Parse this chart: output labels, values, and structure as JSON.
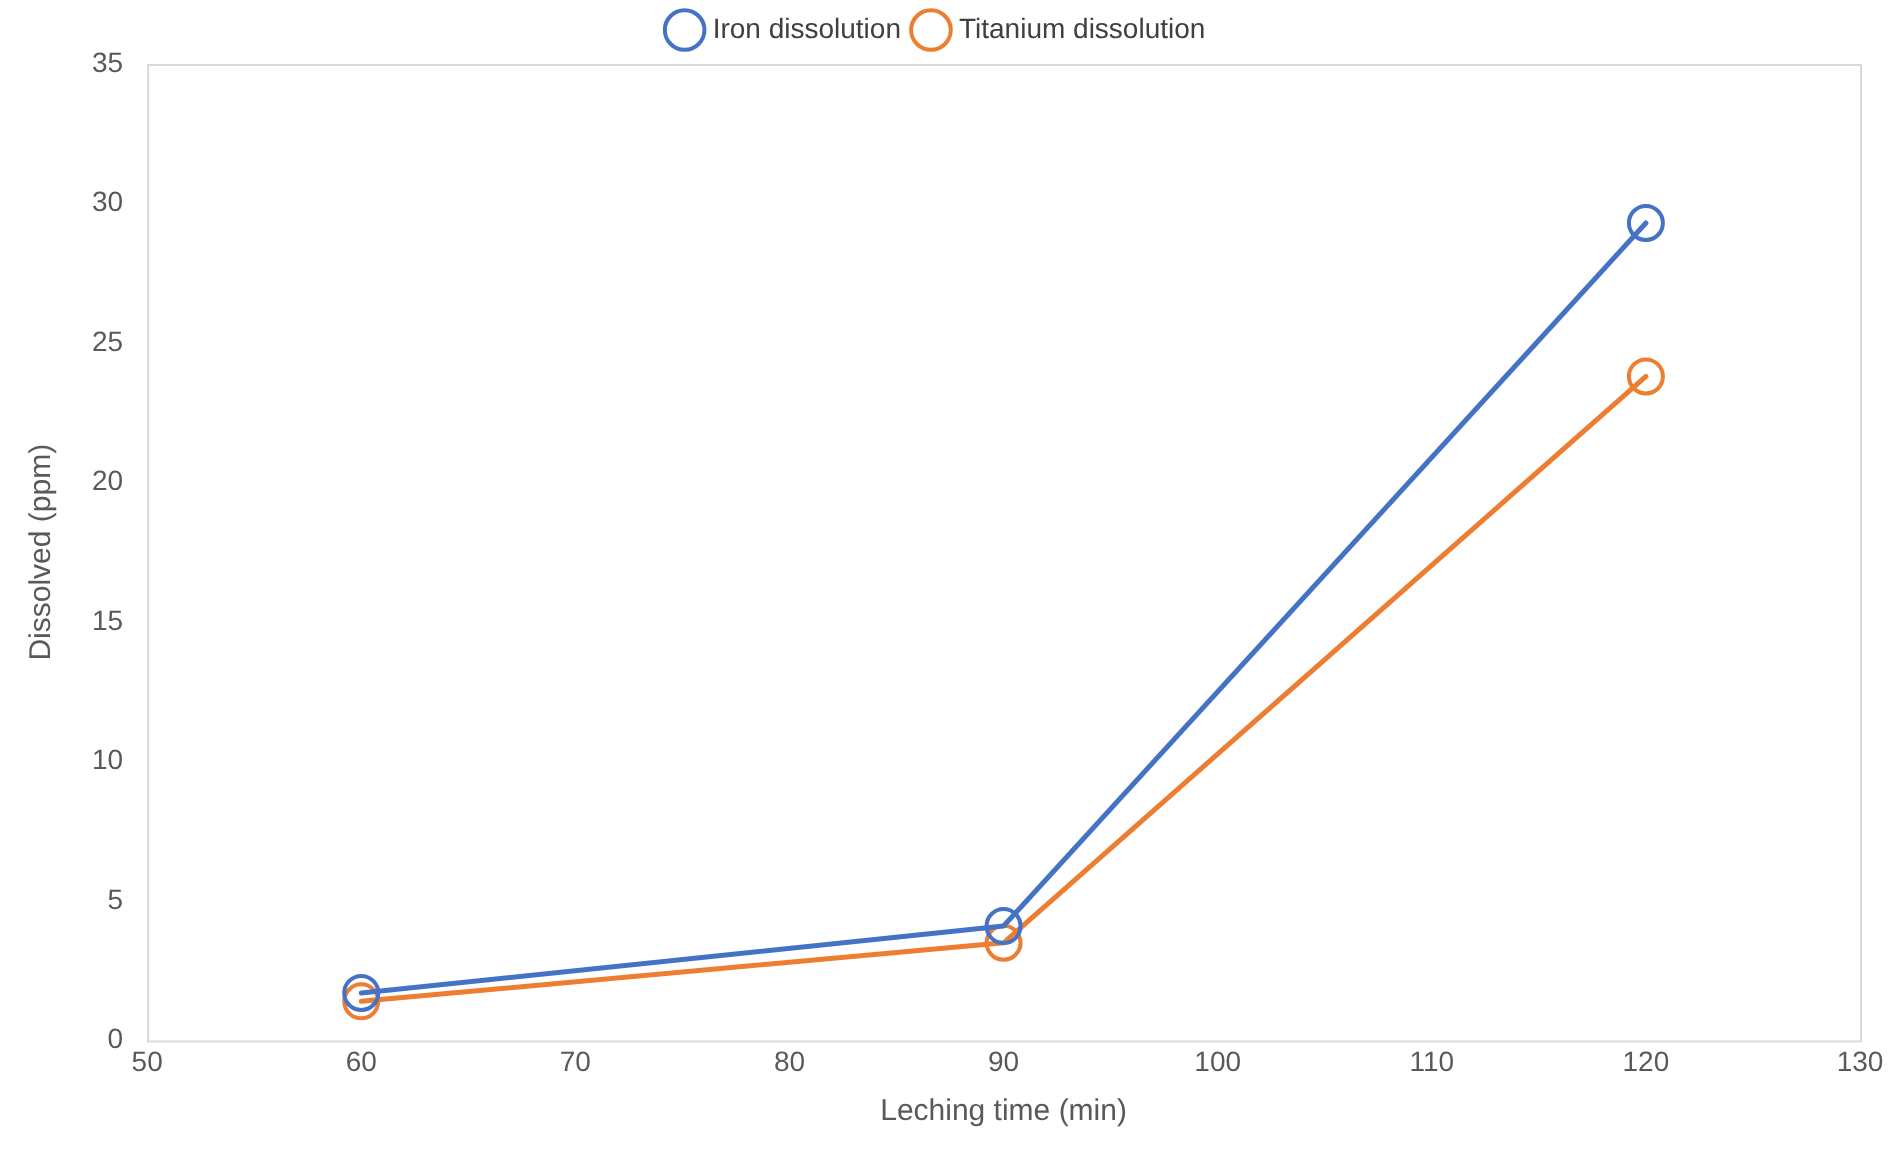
{
  "chart_data": {
    "type": "line",
    "xlabel": "Leching time (min)",
    "ylabel": "Dissolved (ppm)",
    "x": [
      60,
      90,
      120
    ],
    "series": [
      {
        "name": "Iron dissolution",
        "color": "#4472c4",
        "values": [
          1.7,
          4.1,
          29.3
        ]
      },
      {
        "name": "Titanium dissolution",
        "color": "#ed7d31",
        "values": [
          1.4,
          3.5,
          23.8
        ]
      }
    ],
    "xlim": [
      50,
      130
    ],
    "xticks": [
      50,
      60,
      70,
      80,
      90,
      100,
      110,
      120,
      130
    ],
    "ylim": [
      0,
      35
    ],
    "yticks": [
      0,
      5,
      10,
      15,
      20,
      25,
      30,
      35
    ],
    "grid": false,
    "legend": "top",
    "marker": "circle",
    "line_style": "solid"
  }
}
